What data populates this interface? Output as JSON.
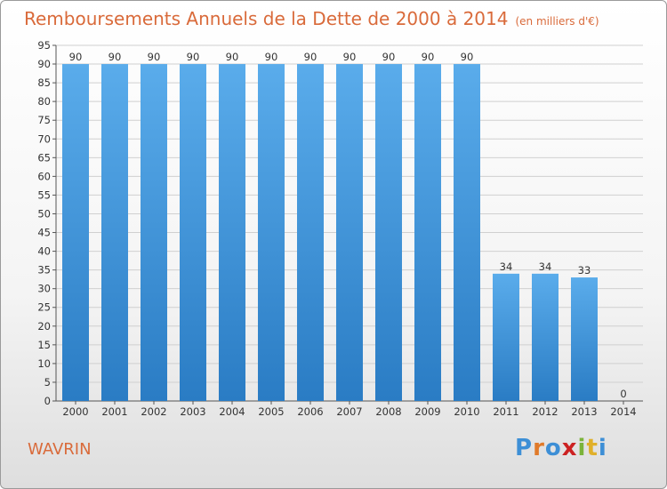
{
  "chart_data": {
    "type": "bar",
    "title": "Remboursements Annuels de la Dette de 2000 à 2014",
    "subtitle": "(en milliers d'€)",
    "categories": [
      "2000",
      "2001",
      "2002",
      "2003",
      "2004",
      "2005",
      "2006",
      "2007",
      "2008",
      "2009",
      "2010",
      "2011",
      "2012",
      "2013",
      "2014"
    ],
    "values": [
      90,
      90,
      90,
      90,
      90,
      90,
      90,
      90,
      90,
      90,
      90,
      34,
      34,
      33,
      0
    ],
    "xlabel": "",
    "ylabel": "",
    "ylim": [
      0,
      95
    ],
    "yticks": [
      0,
      5,
      10,
      15,
      20,
      25,
      30,
      35,
      40,
      45,
      50,
      55,
      60,
      65,
      70,
      75,
      80,
      85,
      90,
      95
    ],
    "grid": true,
    "bar_color": "#3d8fd6"
  },
  "commune": "WAVRIN",
  "logo": {
    "letters": [
      "P",
      "r",
      "o",
      "x",
      "i",
      "t",
      "i"
    ],
    "colors": [
      "#3d8fd6",
      "#e07a2a",
      "#3d8fd6",
      "#cc2222",
      "#7bb33a",
      "#e0b02a",
      "#3d8fd6"
    ]
  }
}
